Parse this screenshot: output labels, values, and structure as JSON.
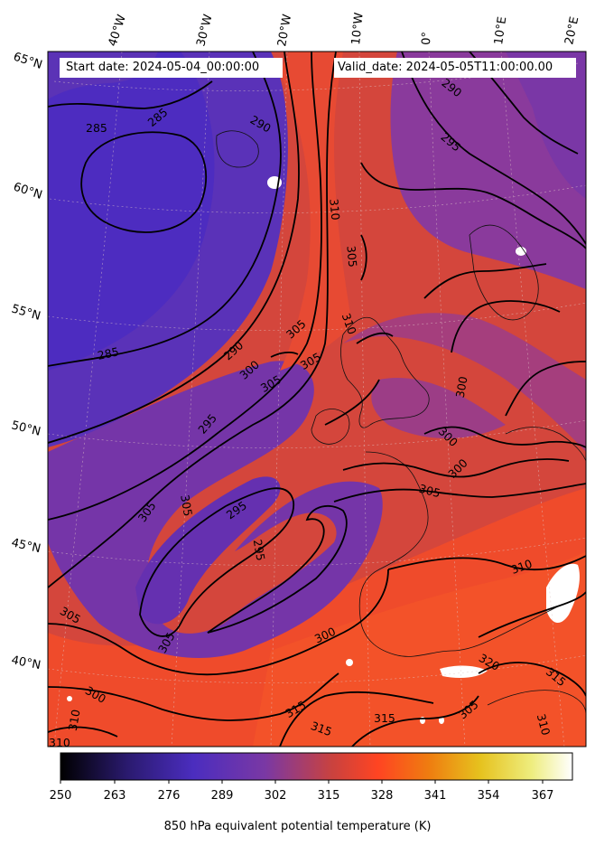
{
  "header": {
    "start_label": "Start date: 2024-05-04_00:00:00",
    "valid_label": "Valid_date: 2024-05-05T11:00:00.00"
  },
  "longitude_labels": [
    "40°W",
    "30°W",
    "20°W",
    "10°W",
    "0°",
    "10°E",
    "20°E"
  ],
  "latitude_labels": [
    "65°N",
    "60°N",
    "55°N",
    "50°N",
    "45°N",
    "40°N"
  ],
  "contour_labels": [
    "285",
    "285",
    "285",
    "290",
    "290",
    "295",
    "290",
    "295",
    "300",
    "310",
    "305",
    "305",
    "310",
    "305",
    "305",
    "300",
    "300",
    "300",
    "305",
    "300",
    "295",
    "305",
    "295",
    "305",
    "305",
    "305",
    "300",
    "310",
    "310",
    "315",
    "315",
    "315",
    "320",
    "315",
    "310",
    "310",
    "305"
  ],
  "colorbar": {
    "title": "850 hPa equivalent potential temperature (K)",
    "ticks": [
      "250",
      "263",
      "276",
      "289",
      "302",
      "315",
      "328",
      "341",
      "354",
      "367"
    ],
    "colors": [
      "#000000",
      "#2a1a6e",
      "#4b2dbf",
      "#7a38a4",
      "#c9423f",
      "#ff4422",
      "#ef7d10",
      "#e6c21e",
      "#eeed7e",
      "#ffffff"
    ]
  }
}
